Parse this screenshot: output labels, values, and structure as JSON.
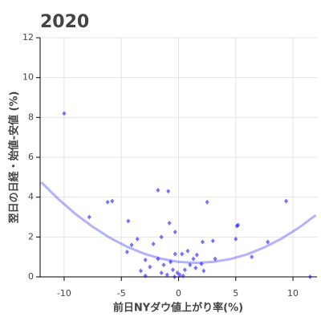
{
  "chart_data": {
    "type": "scatter",
    "title": "2020",
    "x_label": "前日NYダウ値上がり率(%)",
    "y_label": "翌日の日経・始値-安値 (%)",
    "xlim": [
      -12.1,
      12.1
    ],
    "xticks": [
      -10,
      -5,
      0,
      5,
      10
    ],
    "ylim": [
      0,
      12
    ],
    "yticks": [
      0,
      2,
      4,
      6,
      8,
      10,
      12
    ],
    "grid": true,
    "series": [
      {
        "type": "scatter",
        "color": "#0000ff",
        "x": [
          -10,
          -7.8,
          -6.2,
          -5.8,
          -4.4,
          -1.8,
          -0.9,
          2.5,
          9.4,
          -0.8,
          5.2,
          5.1,
          -3.6,
          -4.1,
          -4.5,
          -2.2,
          -1.5,
          -0.3,
          2.1,
          3.0,
          5.0,
          7.8,
          6.4,
          -2.9,
          -3.3,
          -2.5,
          -1.8,
          -1.3,
          -0.7,
          -0.5,
          -0.1,
          0.1,
          0.4,
          0.55,
          1.0,
          1.3,
          1.5,
          0.3,
          0.8,
          -0.3,
          1.6,
          2.0,
          2.2,
          3.2,
          -0.35,
          11.5,
          -2.9,
          -1.5,
          -1.0
        ],
        "values": [
          8.2,
          3.0,
          3.75,
          3.8,
          2.8,
          4.35,
          4.3,
          3.75,
          3.8,
          2.7,
          2.6,
          2.55,
          1.9,
          1.6,
          1.25,
          1.65,
          2.0,
          2.25,
          1.75,
          1.8,
          1.9,
          1.75,
          1.0,
          0.85,
          0.3,
          0.5,
          0.9,
          0.6,
          0.75,
          0.35,
          0.2,
          0.1,
          0.05,
          0.35,
          0.6,
          0.9,
          0.45,
          1.15,
          1.3,
          1.15,
          1.1,
          0.65,
          0.3,
          0.9,
          0,
          0,
          0.05,
          0.2,
          0.1
        ]
      },
      {
        "type": "line",
        "color": "#0000ff",
        "x": [
          -12,
          -10.5,
          -9,
          -7.5,
          -6,
          -4.5,
          -3,
          -1.5,
          0,
          1.5,
          3,
          4.5,
          6,
          7.5,
          9,
          10.5,
          12
        ],
        "values": [
          4.75,
          3.9,
          3.15,
          2.51,
          1.96,
          1.51,
          1.16,
          0.91,
          0.75,
          0.7,
          0.75,
          0.89,
          1.13,
          1.48,
          1.92,
          2.46,
          3.1
        ]
      }
    ]
  }
}
